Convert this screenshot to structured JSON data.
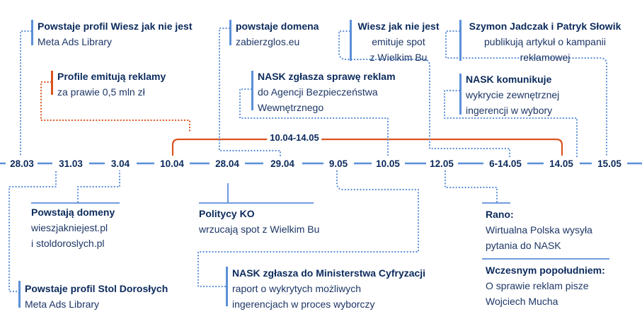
{
  "timeline": {
    "dates": [
      "28.03",
      "31.03",
      "3.04",
      "10.04",
      "28.04",
      "29.04",
      "9.05",
      "10.05",
      "12.05",
      "6-14.05",
      "14.05",
      "15.05"
    ],
    "span_label": "10.04-14.05"
  },
  "events": {
    "e1": {
      "title": "Powstaje profil Wiesz jak nie jest",
      "body": [
        "Meta Ads Library"
      ]
    },
    "e2": {
      "title": "Profile emitują reklamy",
      "body": [
        "za prawie 0,5 mln zł"
      ]
    },
    "e3": {
      "title": "powstaje domena",
      "body": [
        "zabierzglos.eu"
      ]
    },
    "e4": {
      "title": "NASK zgłasza sprawę reklam",
      "body": [
        "do Agencji Bezpieczeństwa",
        "Wewnętrznego"
      ]
    },
    "e5": {
      "title": "Wiesz jak nie jest",
      "body": [
        "emituje spot",
        "z Wielkim Bu"
      ]
    },
    "e6": {
      "title": "Szymon Jadczak i Patryk Słowik",
      "body": [
        "publikują artykuł o kampanii",
        "reklamowej"
      ]
    },
    "e7": {
      "title": "NASK komunikuje",
      "body": [
        "wykrycie zewnętrznej",
        "ingerencji w wybory"
      ]
    },
    "e8": {
      "title": "Powstają domeny",
      "body": [
        "wieszjakniejest.pl",
        "i stoldoroslych.pl"
      ]
    },
    "e9": {
      "title": "Powstaje profil Stol Dorosłych",
      "body": [
        "Meta Ads Library"
      ]
    },
    "e10": {
      "title": "Politycy KO",
      "body": [
        "wrzucają spot z Wielkim Bu"
      ]
    },
    "e11": {
      "title": "NASK zgłasza do Ministerstwa Cyfryzacji",
      "body": [
        "raport o wykrytych możliwych",
        "ingerencjach w proces wyborczy"
      ]
    },
    "e12": {
      "title": "Rano:",
      "body": [
        "Wirtualna Polska wysyła",
        "pytania do NASK"
      ]
    },
    "e13": {
      "title": "Wczesnym popołudniem:",
      "body": [
        "O sprawie reklam pisze",
        "Wojciech Mucha"
      ]
    }
  },
  "colors": {
    "navy": "#0b2a5c",
    "blue": "#5b8fd8",
    "orange": "#d9541e"
  }
}
